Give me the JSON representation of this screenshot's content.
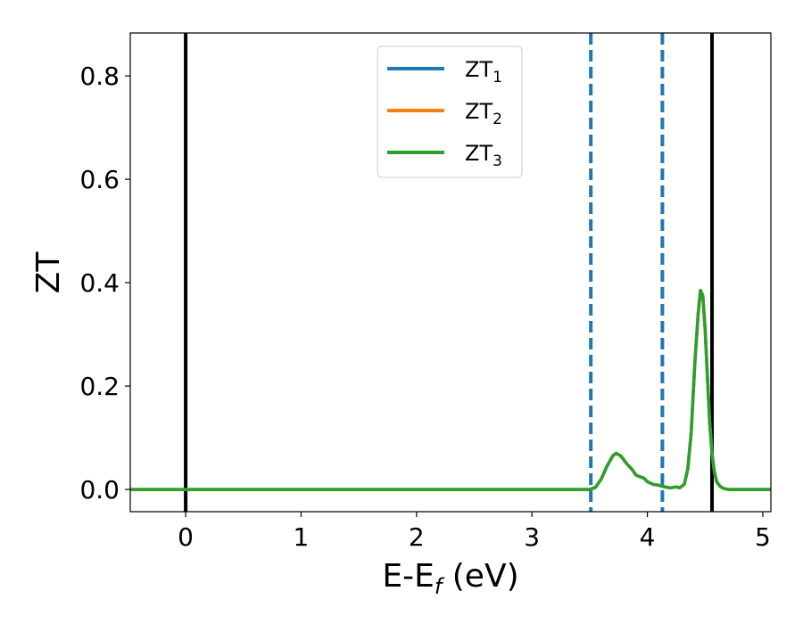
{
  "chart_data": {
    "type": "line",
    "xlabel": "E-E",
    "xlabel_subscript": "f",
    "xlabel_suffix": " (eV)",
    "ylabel": "ZT",
    "xlim": [
      -0.48,
      5.07
    ],
    "ylim": [
      -0.043,
      0.883
    ],
    "x_ticks": [
      0,
      1,
      2,
      3,
      4,
      5
    ],
    "y_ticks": [
      0.0,
      0.2,
      0.4,
      0.6,
      0.8
    ],
    "x_tick_labels": [
      "0",
      "1",
      "2",
      "3",
      "4",
      "5"
    ],
    "y_tick_labels": [
      "0.0",
      "0.2",
      "0.4",
      "0.6",
      "0.8"
    ],
    "grid": false,
    "legend_position": "top-center",
    "vlines_solid": [
      0.0,
      4.56
    ],
    "vlines_dashed": [
      3.51,
      4.13
    ],
    "solid_vline_color": "#000000",
    "dashed_vline_color": "#1f77b4",
    "series": [
      {
        "name": "ZT",
        "subscript": "1",
        "color": "#1f77b4",
        "x": [
          -0.48,
          0.0,
          1.0,
          2.0,
          3.0,
          3.5,
          3.55,
          3.6,
          3.65,
          3.7,
          3.73,
          3.77,
          3.82,
          3.87,
          3.9,
          3.93,
          3.97,
          4.0,
          4.05,
          4.1,
          4.15,
          4.2,
          4.25,
          4.28,
          4.32,
          4.35,
          4.38,
          4.41,
          4.44,
          4.46,
          4.48,
          4.5,
          4.52,
          4.54,
          4.56,
          4.58,
          4.6,
          4.63,
          4.66,
          4.7,
          4.8,
          5.07
        ],
        "y": [
          0.0,
          0.0,
          0.0,
          0.0,
          0.0,
          0.0,
          0.004,
          0.02,
          0.045,
          0.065,
          0.07,
          0.065,
          0.05,
          0.038,
          0.028,
          0.025,
          0.022,
          0.015,
          0.01,
          0.008,
          0.005,
          0.003,
          0.005,
          0.003,
          0.01,
          0.04,
          0.11,
          0.24,
          0.34,
          0.385,
          0.375,
          0.31,
          0.22,
          0.13,
          0.07,
          0.035,
          0.015,
          0.006,
          0.002,
          0.0,
          0.0,
          0.0
        ]
      },
      {
        "name": "ZT",
        "subscript": "2",
        "color": "#ff7f0e",
        "x": [
          -0.48,
          0.0,
          1.0,
          2.0,
          3.0,
          3.5,
          3.55,
          3.6,
          3.65,
          3.7,
          3.73,
          3.77,
          3.82,
          3.87,
          3.9,
          3.93,
          3.97,
          4.0,
          4.05,
          4.1,
          4.15,
          4.2,
          4.25,
          4.28,
          4.32,
          4.35,
          4.38,
          4.41,
          4.44,
          4.46,
          4.48,
          4.5,
          4.52,
          4.54,
          4.56,
          4.58,
          4.6,
          4.63,
          4.66,
          4.7,
          4.8,
          5.07
        ],
        "y": [
          0.0,
          0.0,
          0.0,
          0.0,
          0.0,
          0.0,
          0.004,
          0.02,
          0.045,
          0.065,
          0.07,
          0.065,
          0.05,
          0.038,
          0.028,
          0.025,
          0.022,
          0.015,
          0.01,
          0.008,
          0.005,
          0.003,
          0.005,
          0.003,
          0.01,
          0.04,
          0.11,
          0.24,
          0.34,
          0.385,
          0.375,
          0.31,
          0.22,
          0.13,
          0.07,
          0.035,
          0.015,
          0.006,
          0.002,
          0.0,
          0.0,
          0.0
        ]
      },
      {
        "name": "ZT",
        "subscript": "3",
        "color": "#2ca02c",
        "x": [
          -0.48,
          0.0,
          1.0,
          2.0,
          3.0,
          3.5,
          3.55,
          3.6,
          3.65,
          3.7,
          3.73,
          3.77,
          3.82,
          3.87,
          3.9,
          3.93,
          3.97,
          4.0,
          4.05,
          4.1,
          4.15,
          4.2,
          4.25,
          4.28,
          4.32,
          4.35,
          4.38,
          4.41,
          4.44,
          4.46,
          4.48,
          4.5,
          4.52,
          4.54,
          4.56,
          4.58,
          4.6,
          4.63,
          4.66,
          4.7,
          4.8,
          5.07
        ],
        "y": [
          0.0,
          0.0,
          0.0,
          0.0,
          0.0,
          0.0,
          0.004,
          0.02,
          0.045,
          0.065,
          0.07,
          0.065,
          0.05,
          0.038,
          0.028,
          0.025,
          0.022,
          0.015,
          0.01,
          0.008,
          0.005,
          0.003,
          0.005,
          0.003,
          0.01,
          0.04,
          0.11,
          0.24,
          0.34,
          0.385,
          0.375,
          0.31,
          0.22,
          0.13,
          0.07,
          0.035,
          0.015,
          0.006,
          0.002,
          0.0,
          0.0,
          0.0
        ]
      }
    ]
  }
}
